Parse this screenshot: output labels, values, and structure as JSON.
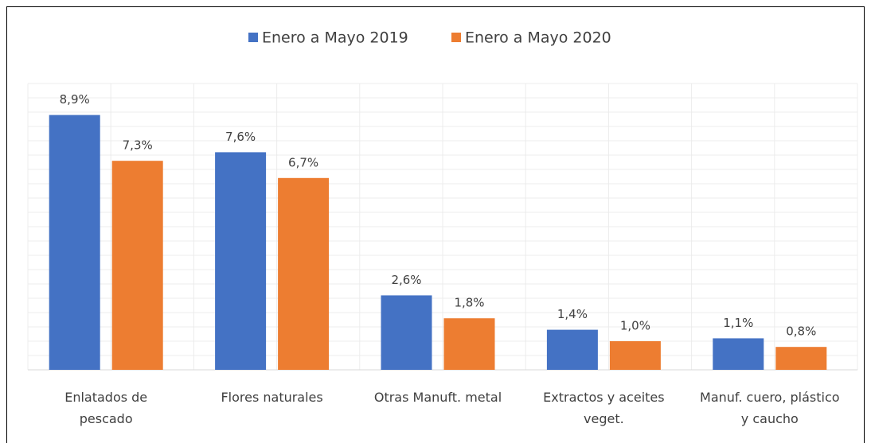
{
  "chart_data": {
    "type": "bar",
    "categories": [
      "Enlatados de pescado",
      "Flores naturales",
      "Otras Manuft. metal",
      "Extractos y aceites veget.",
      "Manuf. cuero, plástico y caucho"
    ],
    "series": [
      {
        "name": "Enero a Mayo 2019",
        "color": "#4472c4",
        "values": [
          8.9,
          7.6,
          2.6,
          1.4,
          1.1
        ],
        "value_labels": [
          "8,9%",
          "7,6%",
          "2,6%",
          "1,4%",
          "1,1%"
        ]
      },
      {
        "name": "Enero a Mayo 2020",
        "color": "#ed7d31",
        "values": [
          7.3,
          6.7,
          1.8,
          1.0,
          0.8
        ],
        "value_labels": [
          "7,3%",
          "6,7%",
          "1,8%",
          "1,0%",
          "0,8%"
        ]
      }
    ],
    "ylim": [
      0,
      10
    ],
    "legend": "top"
  }
}
